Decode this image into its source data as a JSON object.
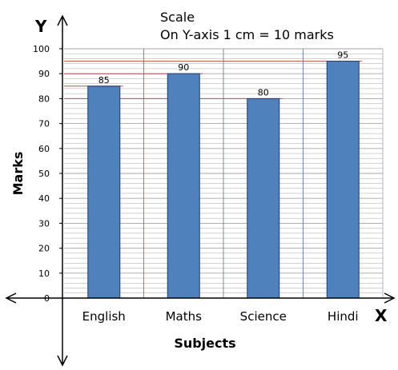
{
  "chart_data": {
    "type": "bar",
    "categories": [
      "English",
      "Maths",
      "Science",
      "Hindi"
    ],
    "values": [
      85,
      90,
      80,
      95
    ],
    "data_labels": [
      "85",
      "90",
      "80",
      "95"
    ],
    "title": "",
    "scale_note": [
      "Scale",
      "On Y-axis 1 cm = 10 marks"
    ],
    "xlabel": "Subjects",
    "ylabel": "Marks",
    "x_axis_letter": "X",
    "y_axis_letter": "Y",
    "origin_label": "0",
    "ylim": [
      0,
      100
    ],
    "yticks": [
      0,
      10,
      20,
      30,
      40,
      50,
      60,
      70,
      80,
      90,
      100
    ],
    "ytick_labels": [
      "0",
      "10",
      "20",
      "30",
      "40",
      "50",
      "60",
      "70",
      "80",
      "90",
      "100"
    ],
    "minor_grid_step": 2,
    "grid": true,
    "reference_lines": [
      85,
      90,
      80,
      95
    ],
    "colors": {
      "bar": "#4f81bd",
      "bar_edge": "#1f3c6e",
      "grid": "#a6a6a6",
      "column_divider": "#4f6fa0",
      "reference_line": "#c0504d",
      "axis": "#000000"
    }
  }
}
